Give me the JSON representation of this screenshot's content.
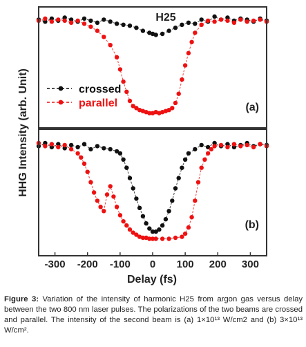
{
  "caption": {
    "label": "Figure 3:",
    "text": "Variation of the intensity of harmonic H25 from argon gas versus delay between the two 800 nm laser pulses. The polarizations of the two beams are crossed and parallel. The intensity of the second beam is (a) 1×10¹³ W/cm2 and (b) 3×10¹³ W/cm²."
  },
  "colors": {
    "crossed": "#111111",
    "parallel": "#ee1111",
    "frame": "#333333"
  },
  "chart_data": {
    "type": "scatter",
    "xlabel": "Delay (fs)",
    "ylabel": "HHG Intensity (arb. Unit)",
    "xlim": [
      -350,
      350
    ],
    "xticks": [
      -300,
      -200,
      -100,
      0,
      100,
      200,
      300
    ],
    "legend": {
      "placement": "left",
      "entries": [
        "crossed",
        "parallel"
      ]
    },
    "panels": [
      {
        "label": "(a)",
        "title": "H25",
        "ylim": [
          0,
          1
        ],
        "series": [
          {
            "name": "crossed",
            "color": "#111111",
            "marker": "circle",
            "line": "dashed",
            "x": [
              -350,
              -330,
              -310,
              -290,
              -270,
              -250,
              -230,
              -210,
              -190,
              -170,
              -150,
              -130,
              -110,
              -90,
              -70,
              -50,
              -30,
              -10,
              0,
              10,
              30,
              50,
              70,
              90,
              110,
              130,
              150,
              170,
              190,
              210,
              230,
              250,
              270,
              290,
              310,
              330,
              350
            ],
            "values": [
              0.97,
              0.95,
              0.98,
              0.96,
              0.99,
              0.97,
              0.95,
              0.98,
              0.96,
              0.94,
              0.97,
              0.95,
              0.93,
              0.92,
              0.91,
              0.89,
              0.86,
              0.84,
              0.83,
              0.82,
              0.83,
              0.86,
              0.89,
              0.92,
              0.94,
              0.93,
              0.97,
              0.95,
              1.0,
              0.97,
              0.99,
              0.96,
              0.98,
              0.97,
              0.95,
              0.98,
              0.96
            ]
          },
          {
            "name": "parallel",
            "color": "#ee1111",
            "marker": "circle",
            "line": "dashed",
            "x": [
              -350,
              -330,
              -310,
              -290,
              -270,
              -250,
              -230,
              -210,
              -190,
              -170,
              -150,
              -130,
              -110,
              -100,
              -90,
              -80,
              -70,
              -60,
              -50,
              -40,
              -30,
              -20,
              -10,
              0,
              10,
              20,
              30,
              40,
              50,
              60,
              70,
              80,
              90,
              100,
              110,
              120,
              130,
              150,
              170,
              190,
              210,
              230,
              250,
              270,
              290,
              310,
              330,
              350
            ],
            "values": [
              0.96,
              0.98,
              0.95,
              0.97,
              0.96,
              0.94,
              0.96,
              0.93,
              0.9,
              0.86,
              0.8,
              0.72,
              0.6,
              0.48,
              0.36,
              0.26,
              0.17,
              0.12,
              0.1,
              0.08,
              0.07,
              0.06,
              0.05,
              0.05,
              0.06,
              0.05,
              0.06,
              0.07,
              0.08,
              0.1,
              0.15,
              0.24,
              0.38,
              0.52,
              0.64,
              0.75,
              0.84,
              0.92,
              0.96,
              0.95,
              0.97,
              0.96,
              0.94,
              0.97,
              0.95,
              0.96,
              0.97,
              0.95
            ]
          }
        ]
      },
      {
        "label": "(b)",
        "title": "",
        "ylim": [
          0,
          1
        ],
        "series": [
          {
            "name": "crossed",
            "color": "#111111",
            "marker": "circle",
            "line": "dashed",
            "x": [
              -350,
              -330,
              -310,
              -290,
              -270,
              -250,
              -230,
              -210,
              -190,
              -170,
              -150,
              -130,
              -110,
              -100,
              -90,
              -80,
              -70,
              -60,
              -50,
              -40,
              -30,
              -20,
              -10,
              0,
              10,
              20,
              30,
              40,
              50,
              60,
              70,
              80,
              90,
              100,
              110,
              130,
              150,
              170,
              190,
              210,
              230,
              250,
              270,
              290,
              310,
              330,
              350
            ],
            "values": [
              0.93,
              0.96,
              0.92,
              0.95,
              0.91,
              0.94,
              0.92,
              0.95,
              0.9,
              0.93,
              0.91,
              0.9,
              0.88,
              0.86,
              0.8,
              0.72,
              0.62,
              0.52,
              0.42,
              0.33,
              0.25,
              0.18,
              0.13,
              0.1,
              0.1,
              0.12,
              0.16,
              0.22,
              0.3,
              0.4,
              0.52,
              0.62,
              0.72,
              0.8,
              0.86,
              0.9,
              0.94,
              0.92,
              0.96,
              0.93,
              0.95,
              0.92,
              0.94,
              0.96,
              0.93,
              0.95,
              0.94
            ]
          },
          {
            "name": "parallel",
            "color": "#ee1111",
            "marker": "circle",
            "line": "dashed",
            "x": [
              -350,
              -330,
              -310,
              -290,
              -270,
              -250,
              -230,
              -220,
              -210,
              -200,
              -190,
              -180,
              -170,
              -160,
              -150,
              -140,
              -130,
              -120,
              -110,
              -100,
              -90,
              -80,
              -70,
              -60,
              -50,
              -40,
              -30,
              -20,
              -10,
              0,
              10,
              30,
              50,
              70,
              90,
              100,
              110,
              120,
              130,
              140,
              150,
              160,
              170,
              180,
              190,
              210,
              230,
              250,
              270,
              290,
              310,
              330,
              350
            ],
            "values": [
              0.96,
              0.93,
              0.95,
              0.92,
              0.94,
              0.9,
              0.86,
              0.82,
              0.76,
              0.68,
              0.58,
              0.48,
              0.4,
              0.34,
              0.3,
              0.46,
              0.54,
              0.44,
              0.34,
              0.26,
              0.2,
              0.16,
              0.12,
              0.09,
              0.07,
              0.05,
              0.04,
              0.04,
              0.03,
              0.03,
              0.03,
              0.03,
              0.03,
              0.04,
              0.05,
              0.08,
              0.14,
              0.24,
              0.4,
              0.58,
              0.72,
              0.8,
              0.86,
              0.9,
              0.93,
              0.94,
              0.92,
              0.95,
              0.93,
              0.94,
              0.92,
              0.95,
              0.93
            ]
          }
        ]
      }
    ]
  }
}
